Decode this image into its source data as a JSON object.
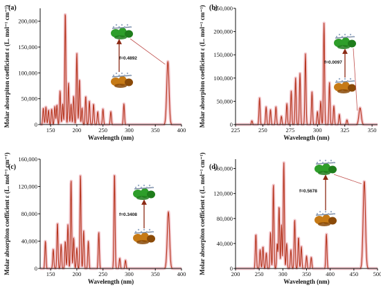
{
  "chart_data": [
    {
      "panel": "(a)",
      "type": "line",
      "xlabel": "Wavelength (nm)",
      "ylabel": "Molar absorpiton coefficient ε (L. mol⁻¹ cm⁻¹)",
      "xlim": [
        130,
        400
      ],
      "ylim": [
        0,
        225000
      ],
      "xticks": [
        150,
        200,
        250,
        300,
        350,
        400
      ],
      "yticks": [
        0,
        50000,
        100000,
        150000,
        200000
      ],
      "ytick_labels": [
        "0",
        "50,000",
        "100,000",
        "150,000",
        "200,000"
      ],
      "annotation": "f=0.4892",
      "peaks": [
        [
          136,
          32000
        ],
        [
          141,
          34000
        ],
        [
          146,
          28000
        ],
        [
          152,
          30000
        ],
        [
          158,
          35000
        ],
        [
          162,
          38000
        ],
        [
          168,
          65000
        ],
        [
          173,
          40000
        ],
        [
          178,
          218000
        ],
        [
          184,
          80000
        ],
        [
          189,
          40000
        ],
        [
          194,
          55000
        ],
        [
          200,
          138000
        ],
        [
          205,
          88000
        ],
        [
          210,
          32000
        ],
        [
          217,
          55000
        ],
        [
          224,
          45000
        ],
        [
          232,
          40000
        ],
        [
          240,
          25000
        ],
        [
          250,
          30000
        ],
        [
          265,
          25000
        ],
        [
          290,
          40000
        ],
        [
          374,
          122000
        ]
      ],
      "series_color": "#b5341c"
    },
    {
      "panel": "(b)",
      "type": "line",
      "xlabel": "Wavelength (nm)",
      "ylabel": "Molar absorpiton coefficient ε (L. mol⁻¹ cm⁻¹)",
      "xlim": [
        225,
        355
      ],
      "ylim": [
        0,
        250000
      ],
      "xticks": [
        225,
        250,
        275,
        300,
        325,
        350
      ],
      "yticks": [
        0,
        50000,
        100000,
        150000,
        200000,
        250000
      ],
      "ytick_labels": [
        "0",
        "50,000",
        "100,000",
        "150,000",
        "200,000",
        "250,000"
      ],
      "annotation": "f=0.0097",
      "peaks": [
        [
          240,
          8000
        ],
        [
          247,
          57000
        ],
        [
          253,
          38000
        ],
        [
          257,
          32000
        ],
        [
          262,
          38000
        ],
        [
          267,
          18000
        ],
        [
          272,
          45000
        ],
        [
          276,
          72000
        ],
        [
          280,
          100000
        ],
        [
          284,
          110000
        ],
        [
          289,
          152000
        ],
        [
          295,
          70000
        ],
        [
          300,
          28000
        ],
        [
          303,
          50000
        ],
        [
          306,
          218000
        ],
        [
          311,
          90000
        ],
        [
          315,
          40000
        ],
        [
          320,
          22000
        ],
        [
          327,
          10000
        ],
        [
          339,
          36000
        ]
      ],
      "series_color": "#b5341c"
    },
    {
      "panel": "(c)",
      "type": "line",
      "xlabel": "Wavelength (nm)",
      "ylabel": "Molar absorpiton coefficient ε (L. mol⁻¹ cm⁻¹)",
      "xlim": [
        130,
        400
      ],
      "ylim": [
        0,
        160000
      ],
      "xticks": [
        150,
        200,
        250,
        300,
        350,
        400
      ],
      "yticks": [
        0,
        40000,
        80000,
        120000,
        160000
      ],
      "ytick_labels": [
        "0",
        "40,000",
        "80,000",
        "120,000",
        "160,000"
      ],
      "annotation": "f=0.3408",
      "peaks": [
        [
          140,
          40000
        ],
        [
          155,
          28000
        ],
        [
          163,
          67000
        ],
        [
          170,
          35000
        ],
        [
          178,
          40000
        ],
        [
          183,
          64000
        ],
        [
          189,
          130000
        ],
        [
          194,
          45000
        ],
        [
          200,
          30000
        ],
        [
          207,
          137000
        ],
        [
          213,
          55000
        ],
        [
          222,
          40000
        ],
        [
          242,
          53000
        ],
        [
          272,
          140000
        ],
        [
          282,
          15000
        ],
        [
          293,
          12000
        ],
        [
          375,
          83000
        ]
      ],
      "series_color": "#b5341c"
    },
    {
      "panel": "(d)",
      "type": "line",
      "xlabel": "Wavelength (nm)",
      "ylabel": "Molar absorpiton coefficient ε (L. mol⁻¹ cm⁻¹)",
      "xlim": [
        200,
        500
      ],
      "ylim": [
        0,
        175000
      ],
      "xticks": [
        200,
        250,
        300,
        350,
        400,
        450,
        500
      ],
      "yticks": [
        0,
        40000,
        80000,
        120000,
        160000
      ],
      "ytick_labels": [
        "0",
        "40,000",
        "80,000",
        "120,000",
        "160,000"
      ],
      "annotation": "f=0.5678",
      "peaks": [
        [
          243,
          55000
        ],
        [
          252,
          30000
        ],
        [
          258,
          35000
        ],
        [
          265,
          25000
        ],
        [
          274,
          58000
        ],
        [
          280,
          135000
        ],
        [
          288,
          40000
        ],
        [
          292,
          100000
        ],
        [
          297,
          70000
        ],
        [
          302,
          170000
        ],
        [
          308,
          40000
        ],
        [
          317,
          30000
        ],
        [
          325,
          78000
        ],
        [
          333,
          50000
        ],
        [
          339,
          35000
        ],
        [
          350,
          20000
        ],
        [
          360,
          18000
        ],
        [
          392,
          55000
        ],
        [
          472,
          140000
        ]
      ],
      "series_color": "#b5341c"
    }
  ],
  "colors": {
    "curve": "#b5341c",
    "axis": "#111111",
    "connector": "#c0504d",
    "arrow": "#8b2a14",
    "orbital_positive": "#2e9e2a",
    "orbital_negative": "#c67a16"
  }
}
